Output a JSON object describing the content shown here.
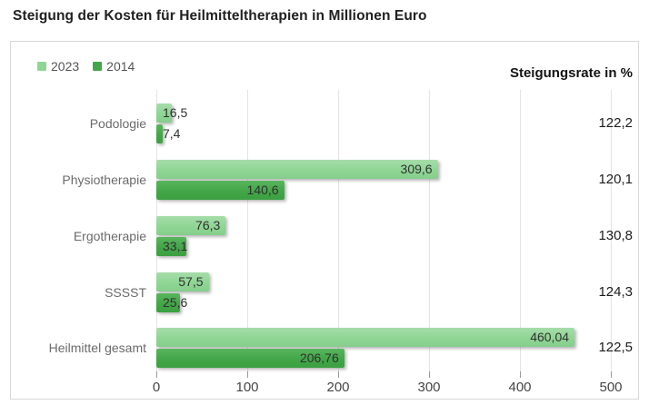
{
  "title": "Steigung der Kosten für Heilmitteltherapien in Millionen Euro",
  "right_axis_title": "Steigungsrate in %",
  "legend": [
    {
      "label": "2023",
      "color": "#8fd694"
    },
    {
      "label": "2014",
      "color": "#43a648"
    }
  ],
  "chart_data": {
    "type": "bar",
    "orientation": "horizontal",
    "title": "Steigung der Kosten für Heilmitteltherapien in Millionen Euro",
    "unit": "Millionen Euro",
    "categories": [
      "Podologie",
      "Physiotherapie",
      "Ergotherapie",
      "SSSST",
      "Heilmittel gesamt"
    ],
    "series": [
      {
        "name": "2023",
        "color": "#8fd694",
        "color_top": "#a6dcaa",
        "color_bottom": "#84ce8b",
        "values": [
          16.5,
          309.6,
          76.3,
          57.5,
          460.04
        ],
        "labels": [
          "16,5",
          "309,6",
          "76,3",
          "57,5",
          "460,04"
        ]
      },
      {
        "name": "2014",
        "color": "#43a648",
        "color_top": "#58b65d",
        "color_bottom": "#3ba041",
        "values": [
          7.4,
          140.6,
          33.1,
          25.6,
          206.76
        ],
        "labels": [
          "7,4",
          "140,6",
          "33,1",
          "25,6",
          "206,76"
        ]
      }
    ],
    "steigungsrate": [
      "122,2",
      "120,1",
      "130,8",
      "124,3",
      "122,5"
    ],
    "steigungsrate_title": "Steigungsrate in %",
    "x_ticks": [
      0,
      100,
      200,
      300,
      400,
      500
    ],
    "xlim": [
      0,
      500
    ],
    "grid": true,
    "legend_position": "top-left"
  }
}
